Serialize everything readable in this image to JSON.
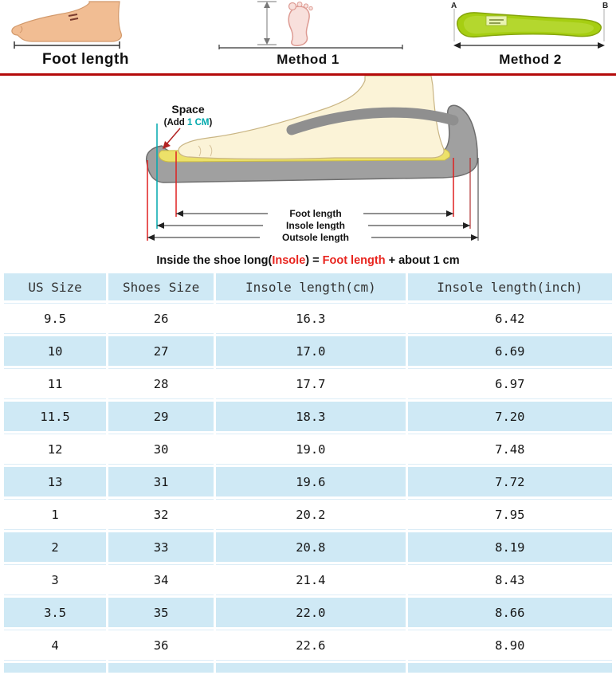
{
  "top": {
    "foot": {
      "label": "Foot length"
    },
    "method1": {
      "label": "Method 1"
    },
    "method2": {
      "label": "Method 2",
      "marker_a": "A",
      "marker_b": "B"
    }
  },
  "diagram": {
    "space_title": "Space",
    "space_note_prefix": "(Add ",
    "space_note_value": "1 CM",
    "space_note_suffix": ")",
    "dims": {
      "foot": "Foot length",
      "insole": "Insole length",
      "outsole": "Outsole length"
    },
    "formula": {
      "p1": "Inside the shoe long(",
      "insole": "Insole",
      "p2": ") = ",
      "foot": "Foot length",
      "p3": " + about ",
      "value": "1 cm"
    }
  },
  "table": {
    "headers": [
      "US Size",
      "Shoes Size",
      "Insole length(cm)",
      "Insole length(inch)"
    ],
    "rows": [
      [
        "9.5",
        "26",
        "16.3",
        "6.42"
      ],
      [
        "10",
        "27",
        "17.0",
        "6.69"
      ],
      [
        "11",
        "28",
        "17.7",
        "6.97"
      ],
      [
        "11.5",
        "29",
        "18.3",
        "7.20"
      ],
      [
        "12",
        "30",
        "19.0",
        "7.48"
      ],
      [
        "13",
        "31",
        "19.6",
        "7.72"
      ],
      [
        "1",
        "32",
        "20.2",
        "7.95"
      ],
      [
        "2",
        "33",
        "20.8",
        "8.19"
      ],
      [
        "3",
        "34",
        "21.4",
        "8.43"
      ],
      [
        "3.5",
        "35",
        "22.0",
        "8.66"
      ],
      [
        "4",
        "36",
        "22.6",
        "8.90"
      ]
    ]
  },
  "chart_data": {
    "type": "table",
    "title": "Shoe size conversion chart",
    "columns": [
      "US Size",
      "Shoes Size",
      "Insole length(cm)",
      "Insole length(inch)"
    ],
    "rows": [
      [
        "9.5",
        "26",
        "16.3",
        "6.42"
      ],
      [
        "10",
        "27",
        "17.0",
        "6.69"
      ],
      [
        "11",
        "28",
        "17.7",
        "6.97"
      ],
      [
        "11.5",
        "29",
        "18.3",
        "7.20"
      ],
      [
        "12",
        "30",
        "19.0",
        "7.48"
      ],
      [
        "13",
        "31",
        "19.6",
        "7.72"
      ],
      [
        "1",
        "32",
        "20.2",
        "7.95"
      ],
      [
        "2",
        "33",
        "20.8",
        "8.19"
      ],
      [
        "3",
        "34",
        "21.4",
        "8.43"
      ],
      [
        "3.5",
        "35",
        "22.0",
        "8.66"
      ],
      [
        "4",
        "36",
        "22.6",
        "8.90"
      ]
    ]
  },
  "colors": {
    "row_blue": "#cfe9f5",
    "divider_red": "#b40a0a",
    "accent_red": "#e8251f",
    "accent_teal": "#00a9ad",
    "insole_green": "#a6ce12",
    "insole_yellow": "#ece169"
  }
}
